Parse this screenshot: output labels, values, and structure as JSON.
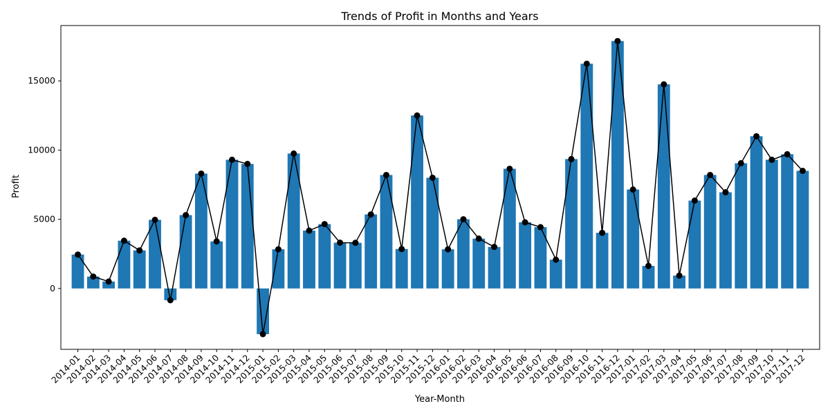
{
  "chart_data": {
    "type": "bar",
    "title": "Trends of Profit in Months and Years",
    "xlabel": "Year-Month",
    "ylabel": "Profit",
    "categories": [
      "2014-01",
      "2014-02",
      "2014-03",
      "2014-04",
      "2014-05",
      "2014-06",
      "2014-07",
      "2014-08",
      "2014-09",
      "2014-10",
      "2014-11",
      "2014-12",
      "2015-01",
      "2015-02",
      "2015-03",
      "2015-04",
      "2015-05",
      "2015-06",
      "2015-07",
      "2015-08",
      "2015-09",
      "2015-10",
      "2015-11",
      "2015-12",
      "2016-01",
      "2016-02",
      "2016-03",
      "2016-04",
      "2016-05",
      "2016-06",
      "2016-07",
      "2016-08",
      "2016-09",
      "2016-10",
      "2016-11",
      "2016-12",
      "2017-01",
      "2017-02",
      "2017-03",
      "2017-04",
      "2017-05",
      "2017-06",
      "2017-07",
      "2017-08",
      "2017-09",
      "2017-10",
      "2017-11",
      "2017-12"
    ],
    "values": [
      2450,
      860,
      500,
      3450,
      2750,
      4960,
      -850,
      5300,
      8300,
      3400,
      9300,
      9000,
      -3300,
      2830,
      9750,
      4180,
      4650,
      3310,
      3300,
      5350,
      8200,
      2850,
      12500,
      8000,
      2830,
      5000,
      3600,
      3000,
      8650,
      4780,
      4430,
      2080,
      9350,
      16240,
      4020,
      17880,
      7150,
      1630,
      14750,
      930,
      6350,
      8200,
      6950,
      9050,
      11000,
      9300,
      9700,
      8500
    ],
    "series_style": {
      "bar_color": "#1f77b4",
      "line_color": "#000000",
      "marker": "circle"
    },
    "yticks": [
      0,
      5000,
      10000,
      15000
    ],
    "ylim": [
      -4400,
      19000
    ],
    "grid": false,
    "legend": "none"
  }
}
